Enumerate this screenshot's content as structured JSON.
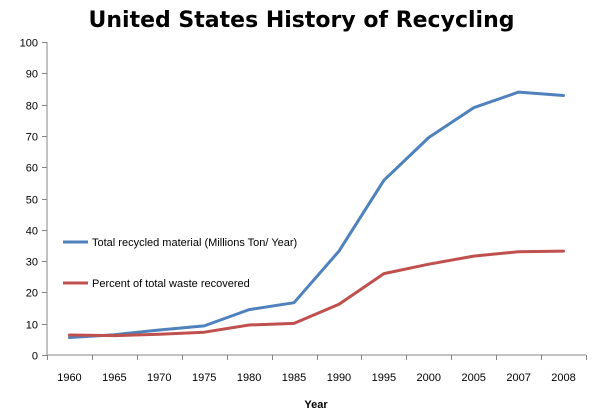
{
  "chart_data": {
    "type": "line",
    "title": "United States History of Recycling",
    "xlabel": "Year",
    "ylabel": "",
    "ylim": [
      0,
      100
    ],
    "yticks": [
      0,
      10,
      20,
      30,
      40,
      50,
      60,
      70,
      80,
      90,
      100
    ],
    "categories": [
      "1960",
      "1965",
      "1970",
      "1975",
      "1980",
      "1985",
      "1990",
      "1995",
      "2000",
      "2005",
      "2007",
      "2008"
    ],
    "grid": false,
    "legend": "left-center",
    "series": [
      {
        "name": "Total recycled material (Millions Ton/ Year)",
        "color": "#4f81bd",
        "values": [
          5.6,
          6.5,
          8.0,
          9.3,
          14.5,
          16.7,
          33.2,
          55.8,
          69.5,
          79.0,
          84.0,
          82.9
        ]
      },
      {
        "name": "Percent of total waste recovered",
        "color": "#c0504d",
        "values": [
          6.4,
          6.2,
          6.6,
          7.3,
          9.6,
          10.1,
          16.2,
          26.0,
          29.0,
          31.6,
          33.0,
          33.2
        ]
      }
    ]
  }
}
